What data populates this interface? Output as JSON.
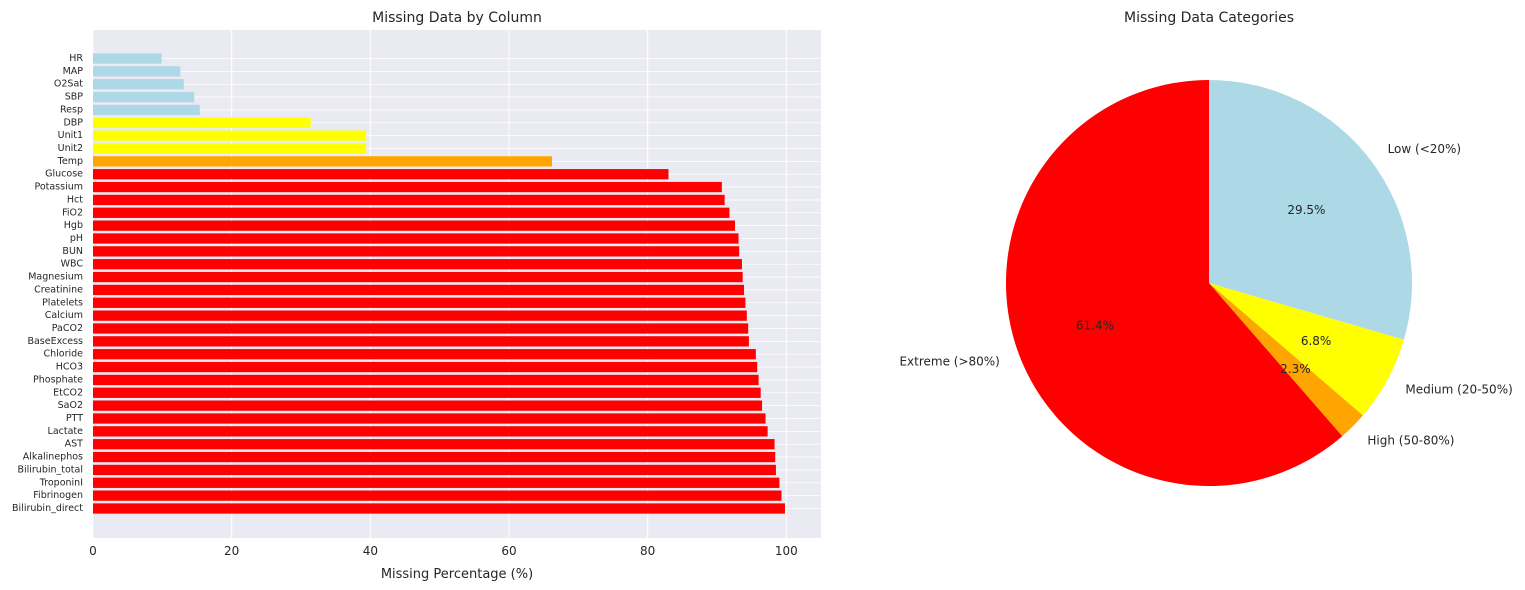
{
  "chart_data": [
    {
      "type": "bar",
      "orientation": "horizontal",
      "title": "Missing Data by Column",
      "xlabel": "Missing Percentage (%)",
      "ylabel": "",
      "xlim": [
        0,
        105
      ],
      "xticks": [
        0,
        20,
        40,
        60,
        80,
        100
      ],
      "grid": true,
      "categories": [
        "HR",
        "MAP",
        "O2Sat",
        "SBP",
        "Resp",
        "DBP",
        "Unit1",
        "Unit2",
        "Temp",
        "Glucose",
        "Potassium",
        "Hct",
        "FiO2",
        "Hgb",
        "pH",
        "BUN",
        "WBC",
        "Magnesium",
        "Creatinine",
        "Platelets",
        "Calcium",
        "PaCO2",
        "BaseExcess",
        "Chloride",
        "HCO3",
        "Phosphate",
        "EtCO2",
        "SaO2",
        "PTT",
        "Lactate",
        "AST",
        "Alkalinephos",
        "Bilirubin_total",
        "TroponinI",
        "Fibrinogen",
        "Bilirubin_direct"
      ],
      "values": [
        9.9,
        12.6,
        13.1,
        14.6,
        15.4,
        31.4,
        39.4,
        39.4,
        66.2,
        83.0,
        90.7,
        91.1,
        91.8,
        92.6,
        93.1,
        93.2,
        93.6,
        93.7,
        93.9,
        94.1,
        94.3,
        94.5,
        94.6,
        95.6,
        95.8,
        96.0,
        96.3,
        96.5,
        97.0,
        97.3,
        98.3,
        98.4,
        98.5,
        99.0,
        99.3,
        99.8
      ],
      "colors": [
        "#add8e6",
        "#add8e6",
        "#add8e6",
        "#add8e6",
        "#add8e6",
        "#ffff00",
        "#ffff00",
        "#ffff00",
        "#ffa500",
        "#ff0000",
        "#ff0000",
        "#ff0000",
        "#ff0000",
        "#ff0000",
        "#ff0000",
        "#ff0000",
        "#ff0000",
        "#ff0000",
        "#ff0000",
        "#ff0000",
        "#ff0000",
        "#ff0000",
        "#ff0000",
        "#ff0000",
        "#ff0000",
        "#ff0000",
        "#ff0000",
        "#ff0000",
        "#ff0000",
        "#ff0000",
        "#ff0000",
        "#ff0000",
        "#ff0000",
        "#ff0000",
        "#ff0000",
        "#ff0000"
      ]
    },
    {
      "type": "pie",
      "title": "Missing Data Categories",
      "start_angle_deg": 90,
      "direction": "counterclockwise",
      "slices": [
        {
          "label": "Extreme (>80%)",
          "value": 61.4,
          "pct_label": "61.4%",
          "color": "#ff0000"
        },
        {
          "label": "High (50-80%)",
          "value": 2.3,
          "pct_label": "2.3%",
          "color": "#ffa500"
        },
        {
          "label": "Medium (20-50%)",
          "value": 6.8,
          "pct_label": "6.8%",
          "color": "#ffff00"
        },
        {
          "label": "Low (<20%)",
          "value": 29.5,
          "pct_label": "29.5%",
          "color": "#add8e6"
        }
      ]
    }
  ],
  "style": {
    "axes_bg": "#eaeaf2",
    "grid_color": "#ffffff",
    "text_color": "#262626"
  }
}
